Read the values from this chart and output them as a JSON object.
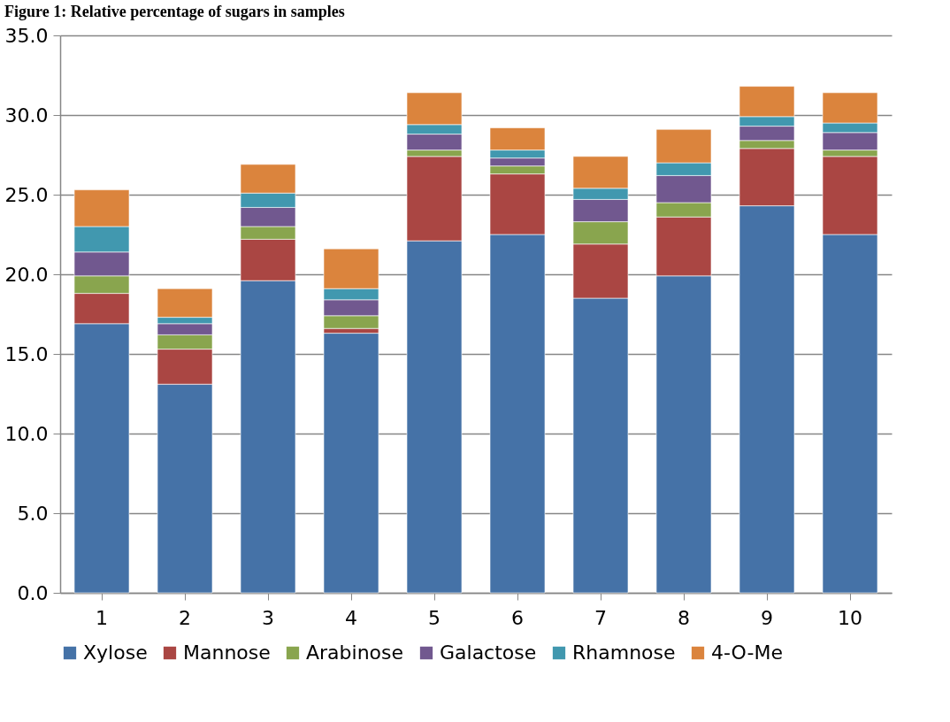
{
  "chart_data": {
    "type": "bar",
    "title": "Figure 1: Relative percentage of sugars in samples",
    "stacked": true,
    "categories": [
      "1",
      "2",
      "3",
      "4",
      "5",
      "6",
      "7",
      "8",
      "9",
      "10"
    ],
    "series": [
      {
        "name": "Xylose",
        "color": "#4572a7",
        "values": [
          16.9,
          13.1,
          19.6,
          16.3,
          22.1,
          22.5,
          18.5,
          19.9,
          24.3,
          22.5
        ]
      },
      {
        "name": "Mannose",
        "color": "#aa4643",
        "values": [
          1.9,
          2.2,
          2.6,
          0.3,
          5.3,
          3.8,
          3.4,
          3.7,
          3.6,
          4.9
        ]
      },
      {
        "name": "Arabinose",
        "color": "#89a54e",
        "values": [
          1.1,
          0.9,
          0.8,
          0.8,
          0.4,
          0.5,
          1.4,
          0.9,
          0.5,
          0.4
        ]
      },
      {
        "name": "Galactose",
        "color": "#71588f",
        "values": [
          1.5,
          0.7,
          1.2,
          1.0,
          1.0,
          0.5,
          1.4,
          1.7,
          0.9,
          1.1
        ]
      },
      {
        "name": "Rhamnose",
        "color": "#4198af",
        "values": [
          1.6,
          0.4,
          0.9,
          0.7,
          0.6,
          0.5,
          0.7,
          0.8,
          0.6,
          0.6
        ]
      },
      {
        "name": "4-O-Me",
        "color": "#db843d",
        "values": [
          2.3,
          1.8,
          1.8,
          2.5,
          2.0,
          1.4,
          2.0,
          2.1,
          1.9,
          1.9
        ]
      }
    ],
    "ylim": [
      0,
      35
    ],
    "yticks": [
      {
        "value": 0,
        "label": "0.0"
      },
      {
        "value": 5,
        "label": "5.0"
      },
      {
        "value": 10,
        "label": "10.0"
      },
      {
        "value": 15,
        "label": "15.0"
      },
      {
        "value": 20,
        "label": "20.0"
      },
      {
        "value": 25,
        "label": "25.0"
      },
      {
        "value": 30,
        "label": "30.0"
      },
      {
        "value": 35,
        "label": "35.0"
      }
    ],
    "grid": "y",
    "legend": "bottom"
  }
}
